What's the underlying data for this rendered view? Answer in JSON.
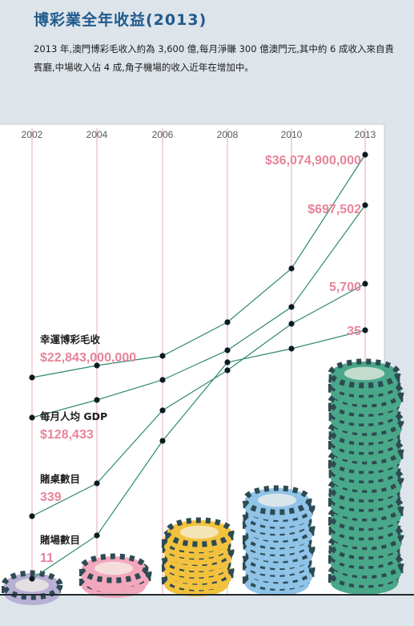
{
  "header": {
    "title": "博彩業全年收益(2013)",
    "intro": "2013 年,澳門博彩毛收入約為 3,600 億,每月淨賺 300 億澳門元,其中約 6 成收入來自貴賓廳,中場收入佔 4 成,角子機場的收入近年在增加中。"
  },
  "colors": {
    "line": "#2e8a6a",
    "label_pink": "#e8839a",
    "chip_dark": "#2e4a52",
    "chip_purple": "#b8b0d4",
    "chip_pink": "#f2a7bc",
    "chip_yellow": "#f2c23e",
    "chip_blue": "#8fc3e8",
    "chip_green": "#49a88a"
  },
  "chart_data": {
    "type": "line",
    "x": [
      "2002",
      "2004",
      "2006",
      "2008",
      "2010",
      "2013"
    ],
    "x_ticks": [
      "2002",
      "2004",
      "2006",
      "2008",
      "2010",
      "2013"
    ],
    "grid": "vertical",
    "series": [
      {
        "key": "revenue",
        "name": "幸運博彩毛收",
        "start_label": "$22,843,000,000",
        "end_label": "$36,074,900,000",
        "values": [
          22843000000,
          null,
          null,
          null,
          null,
          36074900000
        ]
      },
      {
        "key": "gdp",
        "name": "每月人均 GDP",
        "start_label": "$128,433",
        "end_label": "$697,502",
        "values": [
          128433,
          null,
          null,
          null,
          null,
          697502
        ]
      },
      {
        "key": "tables",
        "name": "賭桌數目",
        "start_label": "339",
        "end_label": "5,700",
        "values": [
          339,
          null,
          null,
          null,
          null,
          5700
        ]
      },
      {
        "key": "casinos",
        "name": "賭場數目",
        "start_label": "11",
        "end_label": "35",
        "values": [
          11,
          null,
          null,
          null,
          null,
          35
        ]
      }
    ]
  }
}
